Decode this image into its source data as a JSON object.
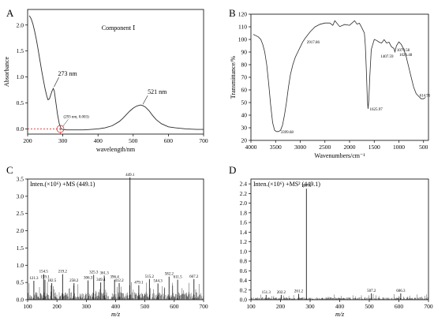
{
  "panel_labels": [
    "A",
    "B",
    "C",
    "D"
  ],
  "colors": {
    "line": "#2b2b2b",
    "axis": "#000000",
    "baseline_dash": "#e03030",
    "spectrum": "#333333"
  },
  "chart_data": [
    {
      "type": "line",
      "panel": "A",
      "title": "Component Ⅰ",
      "xlabel": "wavelength/nm",
      "ylabel": "Absorbance",
      "xlim": [
        200,
        700
      ],
      "ylim": [
        -0.1,
        2.3
      ],
      "xticks": [
        "200",
        "300",
        "400",
        "500",
        "600",
        "700"
      ],
      "yticks": [
        "0.0",
        "0.5",
        "1.0",
        "1.5",
        "2.0"
      ],
      "series": [
        {
          "x": [
            205,
            210,
            215,
            220,
            225,
            230,
            235,
            240,
            245,
            250,
            255,
            258,
            262,
            266,
            270,
            273,
            276,
            280,
            285,
            290,
            295,
            300,
            310,
            320,
            340,
            360,
            380,
            400,
            420,
            440,
            460,
            470,
            480,
            490,
            500,
            510,
            515,
            521,
            527,
            535,
            545,
            555,
            565,
            580,
            600,
            620,
            650,
            680,
            700
          ],
          "y": [
            2.18,
            2.12,
            2.02,
            1.88,
            1.72,
            1.52,
            1.32,
            1.12,
            0.93,
            0.76,
            0.62,
            0.56,
            0.58,
            0.66,
            0.74,
            0.78,
            0.72,
            0.52,
            0.28,
            0.1,
            0.0,
            -0.01,
            -0.02,
            -0.02,
            -0.02,
            -0.02,
            -0.01,
            0.0,
            0.02,
            0.06,
            0.14,
            0.2,
            0.27,
            0.34,
            0.4,
            0.44,
            0.45,
            0.46,
            0.45,
            0.42,
            0.35,
            0.26,
            0.18,
            0.1,
            0.04,
            0.02,
            0.0,
            -0.01,
            -0.01
          ]
        }
      ],
      "annotations": [
        {
          "text": "273 nm",
          "x": 273,
          "y": 0.78
        },
        {
          "text": "521 nm",
          "x": 521,
          "y": 0.46
        },
        {
          "text": "(293 nm, 0.003)",
          "x": 293,
          "y": 0.003
        }
      ]
    },
    {
      "type": "line",
      "panel": "B",
      "xlabel": "Wavenumbers/cm⁻¹",
      "ylabel": "Transmittance/%",
      "xlim": [
        4000,
        400
      ],
      "ylim": [
        20,
        120
      ],
      "xticks": [
        "4000",
        "3500",
        "3000",
        "2500",
        "2000",
        "1500",
        "1000",
        "500"
      ],
      "yticks": [
        "20",
        "30",
        "40",
        "50",
        "60",
        "70",
        "80",
        "90",
        "100",
        "110",
        "120"
      ],
      "series": [
        {
          "x": [
            3950,
            3900,
            3850,
            3800,
            3760,
            3720,
            3680,
            3640,
            3600,
            3560,
            3520,
            3480,
            3440,
            3400,
            3360,
            3320,
            3280,
            3240,
            3200,
            3150,
            3100,
            3050,
            3000,
            2950,
            2900,
            2800,
            2700,
            2600,
            2500,
            2400,
            2340,
            2300,
            2200,
            2100,
            2000,
            1900,
            1850,
            1800,
            1750,
            1700,
            1680,
            1660,
            1640,
            1625,
            1610,
            1590,
            1560,
            1500,
            1450,
            1400,
            1350,
            1300,
            1250,
            1200,
            1150,
            1100,
            1080,
            1050,
            1000,
            950,
            900,
            850,
            800,
            750,
            700,
            650,
            600,
            550,
            500,
            460
          ],
          "y": [
            104,
            103,
            102,
            100,
            96,
            90,
            80,
            65,
            48,
            34,
            28,
            27,
            27,
            28,
            32,
            40,
            50,
            62,
            72,
            80,
            86,
            90,
            94,
            98,
            101,
            106,
            110,
            112,
            113,
            113,
            112,
            114,
            111,
            111,
            112,
            114,
            113,
            112,
            110,
            105,
            95,
            75,
            53,
            45,
            52,
            70,
            92,
            100,
            100,
            97,
            98,
            99,
            98,
            97,
            95,
            92,
            91,
            95,
            98,
            96,
            92,
            86,
            78,
            70,
            62,
            57,
            55,
            53,
            53,
            54
          ]
        }
      ],
      "annotations": [
        {
          "text": "3399.68",
          "x": 3430,
          "y": 27
        },
        {
          "text": "2917.86",
          "x": 2900,
          "y": 98
        },
        {
          "text": "1625.97",
          "x": 1625,
          "y": 45
        },
        {
          "text": "1407.59",
          "x": 1405,
          "y": 87
        },
        {
          "text": "1079.58",
          "x": 1075,
          "y": 92
        },
        {
          "text": "1026.48",
          "x": 1025,
          "y": 88
        },
        {
          "text": "614.91",
          "x": 614,
          "y": 56
        }
      ]
    },
    {
      "type": "bar",
      "panel": "C",
      "title": "Inten.(×10⁶) +MS (449.1)",
      "xlabel": "m/z",
      "ylim": [
        0,
        3.5
      ],
      "xlim": [
        100,
        700
      ],
      "xticks": [
        "100",
        "200",
        "300",
        "400",
        "500",
        "600",
        "700"
      ],
      "yticks": [
        "0.0",
        "0.5",
        "1.0",
        "1.5",
        "2.0",
        "2.5",
        "3.0",
        "3.5"
      ],
      "peaks": [
        {
          "mz": 121.3,
          "i": 0.55,
          "label": "121.3"
        },
        {
          "mz": 154.5,
          "i": 0.74,
          "label": "154.5"
        },
        {
          "mz": 159.1,
          "i": 0.58,
          "label": "159.1"
        },
        {
          "mz": 182.5,
          "i": 0.48,
          "label": "182.5"
        },
        {
          "mz": 219.2,
          "i": 0.74,
          "label": "219.2"
        },
        {
          "mz": 258.2,
          "i": 0.48,
          "label": "258.2"
        },
        {
          "mz": 306.3,
          "i": 0.56,
          "label": "306.3"
        },
        {
          "mz": 325.3,
          "i": 0.72,
          "label": "325.3"
        },
        {
          "mz": 349.4,
          "i": 0.5,
          "label": "349.4"
        },
        {
          "mz": 361.3,
          "i": 0.7,
          "label": "361.3"
        },
        {
          "mz": 396.4,
          "i": 0.58,
          "label": "396.4"
        },
        {
          "mz": 412.2,
          "i": 0.48,
          "label": "412.2"
        },
        {
          "mz": 449.1,
          "i": 3.55,
          "label": "449.1"
        },
        {
          "mz": 479.1,
          "i": 0.42,
          "label": "479.1"
        },
        {
          "mz": 515.2,
          "i": 0.6,
          "label": "515.2"
        },
        {
          "mz": 544.3,
          "i": 0.47,
          "label": "544.3"
        },
        {
          "mz": 582.2,
          "i": 0.67,
          "label": "582.2"
        },
        {
          "mz": 611.5,
          "i": 0.58,
          "label": "611.5"
        },
        {
          "mz": 667.2,
          "i": 0.6,
          "label": "667.2"
        }
      ]
    },
    {
      "type": "bar",
      "panel": "D",
      "title": "Inten.(×10⁶) +MS² (449.1)",
      "xlabel": "m/z",
      "ylim": [
        0,
        2.5
      ],
      "xlim": [
        100,
        700
      ],
      "xticks": [
        "100",
        "200",
        "300",
        "400",
        "500",
        "600",
        "700"
      ],
      "yticks": [
        "0.0",
        "0.2",
        "0.4",
        "0.6",
        "0.8",
        "1.0",
        "1.2",
        "1.4",
        "1.6",
        "1.8",
        "2.0",
        "2.2",
        "2.4"
      ],
      "peaks": [
        {
          "mz": 151.3,
          "i": 0.1,
          "label": "151.3"
        },
        {
          "mz": 202.2,
          "i": 0.1,
          "label": "202.2"
        },
        {
          "mz": 261.2,
          "i": 0.12,
          "label": "261.2"
        },
        {
          "mz": 287.4,
          "i": 2.3,
          "label": "287.4"
        },
        {
          "mz": 507.2,
          "i": 0.13,
          "label": "507.2"
        },
        {
          "mz": 606.3,
          "i": 0.13,
          "label": "606.3"
        }
      ]
    }
  ]
}
